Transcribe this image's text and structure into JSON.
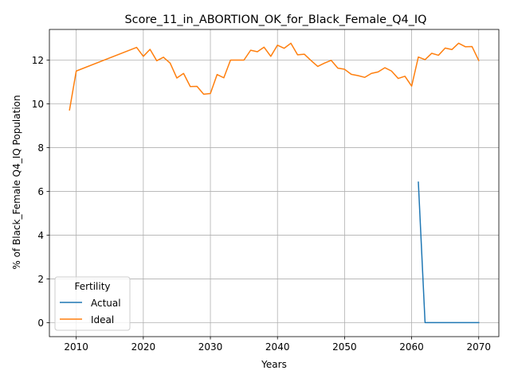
{
  "chart_data": {
    "type": "line",
    "title": "Score_11_in_ABORTION_OK_for_Black_Female_Q4_IQ",
    "xlabel": "Years",
    "ylabel": "% of Black_Female Q4_IQ Population",
    "xlim": [
      2006,
      2073
    ],
    "ylim": [
      -0.64,
      13.4
    ],
    "x_ticks": [
      2010,
      2020,
      2030,
      2040,
      2050,
      2060,
      2070
    ],
    "y_ticks": [
      0,
      2,
      4,
      6,
      8,
      10,
      12
    ],
    "grid": true,
    "legend": {
      "title": "Fertility",
      "placement": "lower-left"
    },
    "series": [
      {
        "name": "Actual",
        "color": "#1f77b4",
        "x": [
          2061,
          2062,
          2063,
          2064,
          2065,
          2066,
          2067,
          2068,
          2069,
          2070
        ],
        "y": [
          6.42,
          0.0,
          0.0,
          0.0,
          0.0,
          0.0,
          0.0,
          0.0,
          0.0,
          0.0
        ]
      },
      {
        "name": "Ideal",
        "color": "#ff7f0e",
        "x": [
          2009,
          2010,
          2019,
          2020,
          2021,
          2022,
          2023,
          2024,
          2025,
          2026,
          2027,
          2028,
          2029,
          2030,
          2031,
          2032,
          2033,
          2034,
          2035,
          2036,
          2037,
          2038,
          2039,
          2040,
          2041,
          2042,
          2043,
          2044,
          2045,
          2046,
          2047,
          2048,
          2049,
          2050,
          2051,
          2052,
          2053,
          2054,
          2055,
          2056,
          2057,
          2058,
          2059,
          2060,
          2061,
          2062,
          2063,
          2064,
          2065,
          2066,
          2067,
          2068,
          2069,
          2070
        ],
        "y": [
          9.72,
          11.5,
          12.58,
          12.17,
          12.49,
          11.97,
          12.13,
          11.86,
          11.18,
          11.39,
          10.79,
          10.8,
          10.44,
          10.47,
          11.34,
          11.19,
          12.0,
          12.0,
          12.0,
          12.45,
          12.38,
          12.59,
          12.17,
          12.68,
          12.54,
          12.77,
          12.24,
          12.27,
          11.98,
          11.71,
          11.86,
          11.99,
          11.63,
          11.58,
          11.35,
          11.29,
          11.21,
          11.39,
          11.46,
          11.65,
          11.5,
          11.16,
          11.26,
          10.81,
          12.14,
          12.02,
          12.31,
          12.22,
          12.55,
          12.48,
          12.77,
          12.61,
          12.62,
          11.98
        ]
      }
    ]
  }
}
